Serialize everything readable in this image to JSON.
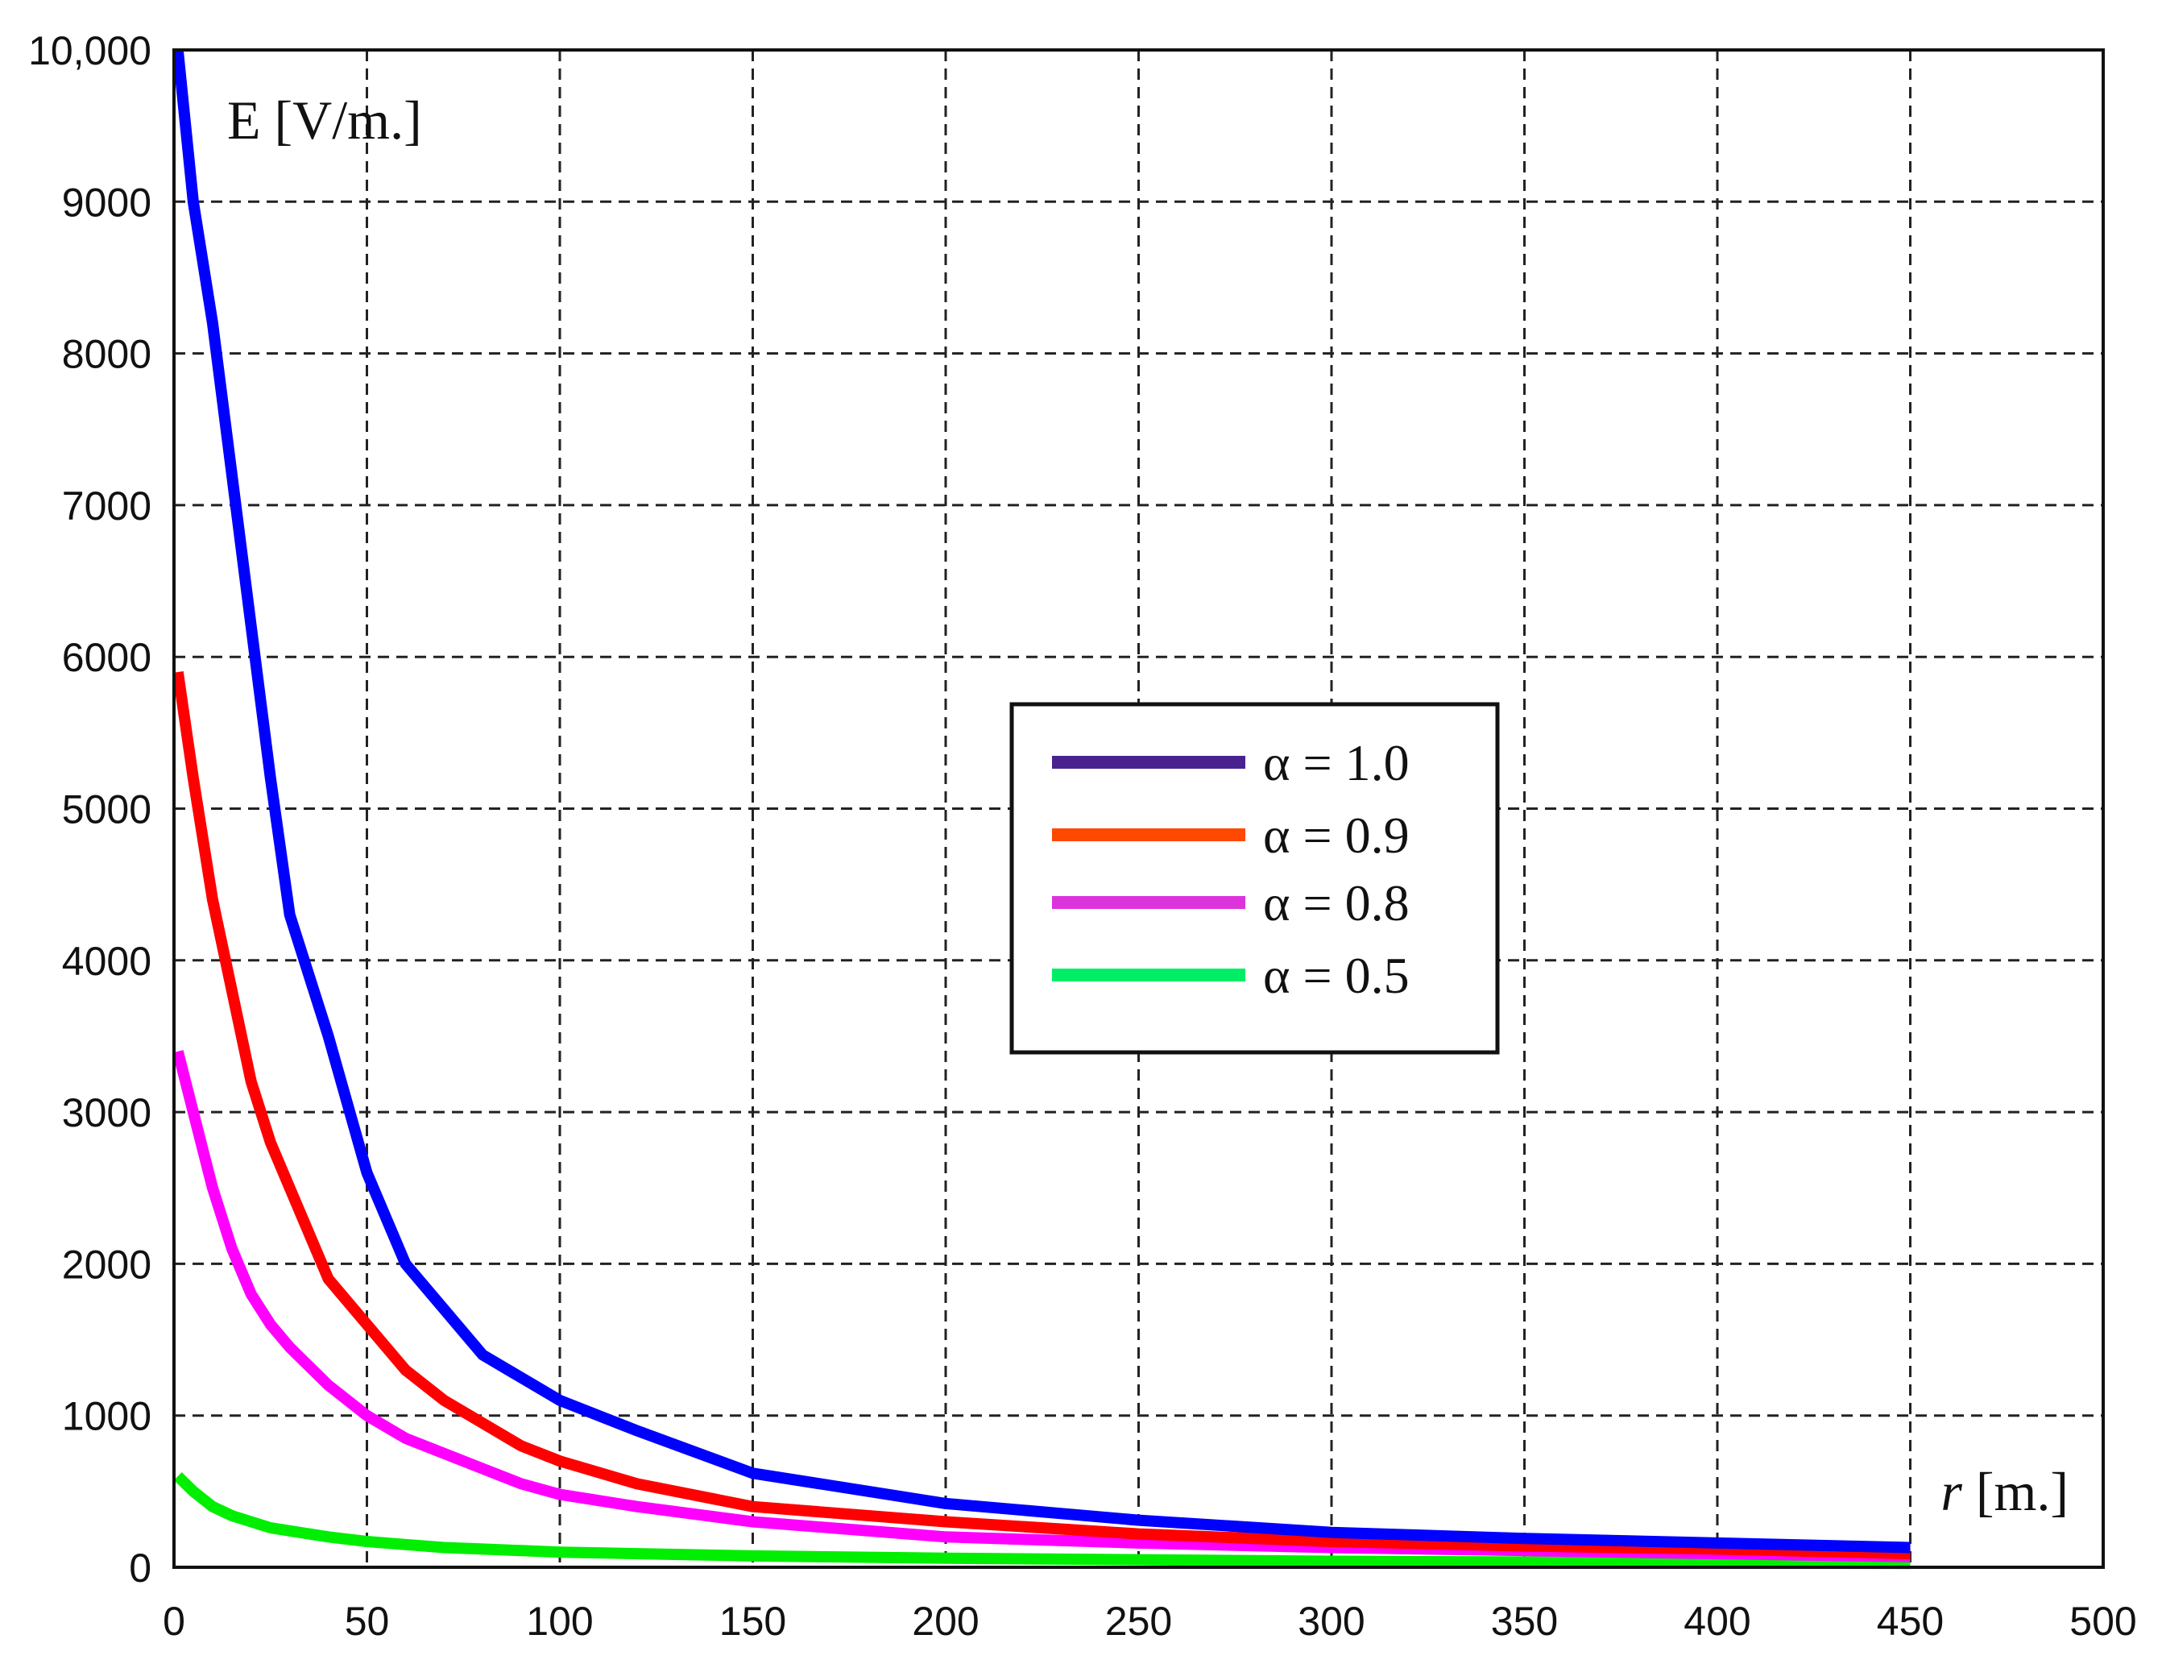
{
  "chart_data": {
    "type": "line",
    "title": "",
    "ylabel": "E [V/m.]",
    "xlabel_italic": "r",
    "xlabel_rest": " [m.]",
    "xlim": [
      0,
      500
    ],
    "ylim": [
      0,
      10000
    ],
    "grid": true,
    "x_ticks": [
      0,
      50,
      100,
      150,
      200,
      250,
      300,
      350,
      400,
      450,
      500
    ],
    "x_tick_labels": [
      "0",
      "50",
      "100",
      "150",
      "200",
      "250",
      "300",
      "350",
      "400",
      "450",
      "500"
    ],
    "y_ticks": [
      0,
      1000,
      2000,
      3000,
      4000,
      5000,
      6000,
      7000,
      8000,
      9000,
      10000
    ],
    "y_tick_labels": [
      "0",
      "1000",
      "2000",
      "3000",
      "4000",
      "5000",
      "6000",
      "7000",
      "8000",
      "9000",
      "10,000"
    ],
    "legend_position": "center-right",
    "x": [
      1,
      5,
      10,
      15,
      20,
      25,
      30,
      40,
      50,
      60,
      70,
      80,
      90,
      100,
      120,
      150,
      200,
      250,
      300,
      350,
      400,
      450
    ],
    "series": [
      {
        "name": "α = 1.0",
        "legend_color": "#4a2290",
        "color": "#0000ff",
        "values": [
          10000,
          9000,
          8200,
          7200,
          6200,
          5200,
          4300,
          3500,
          2600,
          2000,
          1700,
          1400,
          1250,
          1100,
          900,
          620,
          420,
          310,
          230,
          190,
          160,
          130
        ]
      },
      {
        "name": "α = 0.9",
        "legend_color": "#ff4800",
        "color": "#ff0000",
        "values": [
          5900,
          5200,
          4400,
          3800,
          3200,
          2800,
          2500,
          1900,
          1600,
          1300,
          1100,
          950,
          800,
          700,
          550,
          400,
          300,
          220,
          170,
          140,
          120,
          90
        ]
      },
      {
        "name": "α = 0.8",
        "legend_color": "#dd33dd",
        "color": "#ff00ff",
        "values": [
          3400,
          3000,
          2500,
          2100,
          1800,
          1600,
          1450,
          1200,
          1000,
          850,
          750,
          650,
          550,
          480,
          400,
          300,
          200,
          160,
          130,
          110,
          90,
          70
        ]
      },
      {
        "name": "α = 0.5",
        "legend_color": "#00ee66",
        "color": "#00ee00",
        "values": [
          600,
          500,
          400,
          340,
          300,
          260,
          240,
          200,
          170,
          150,
          130,
          120,
          110,
          100,
          90,
          75,
          60,
          50,
          40,
          35,
          30,
          25
        ]
      }
    ]
  }
}
